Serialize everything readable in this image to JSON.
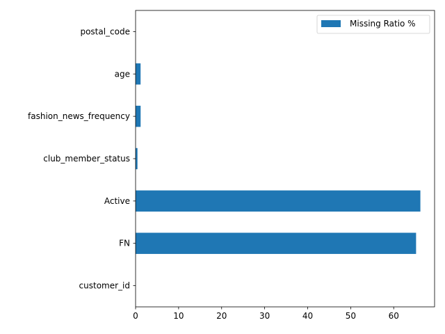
{
  "chart_data": {
    "type": "bar",
    "orientation": "horizontal",
    "categories": [
      "customer_id",
      "FN",
      "Active",
      "club_member_status",
      "fashion_news_frequency",
      "age",
      "postal_code"
    ],
    "series": [
      {
        "name": "Missing Ratio %",
        "values": [
          0.0,
          65.2,
          66.2,
          0.44,
          1.17,
          1.16,
          0.0
        ],
        "color": "#1f77b4"
      }
    ],
    "xlim": [
      0,
      69.5
    ],
    "xticks": [
      "0",
      "10",
      "20",
      "30",
      "40",
      "50",
      "60"
    ],
    "grid": false,
    "legend_position": "top-right"
  }
}
